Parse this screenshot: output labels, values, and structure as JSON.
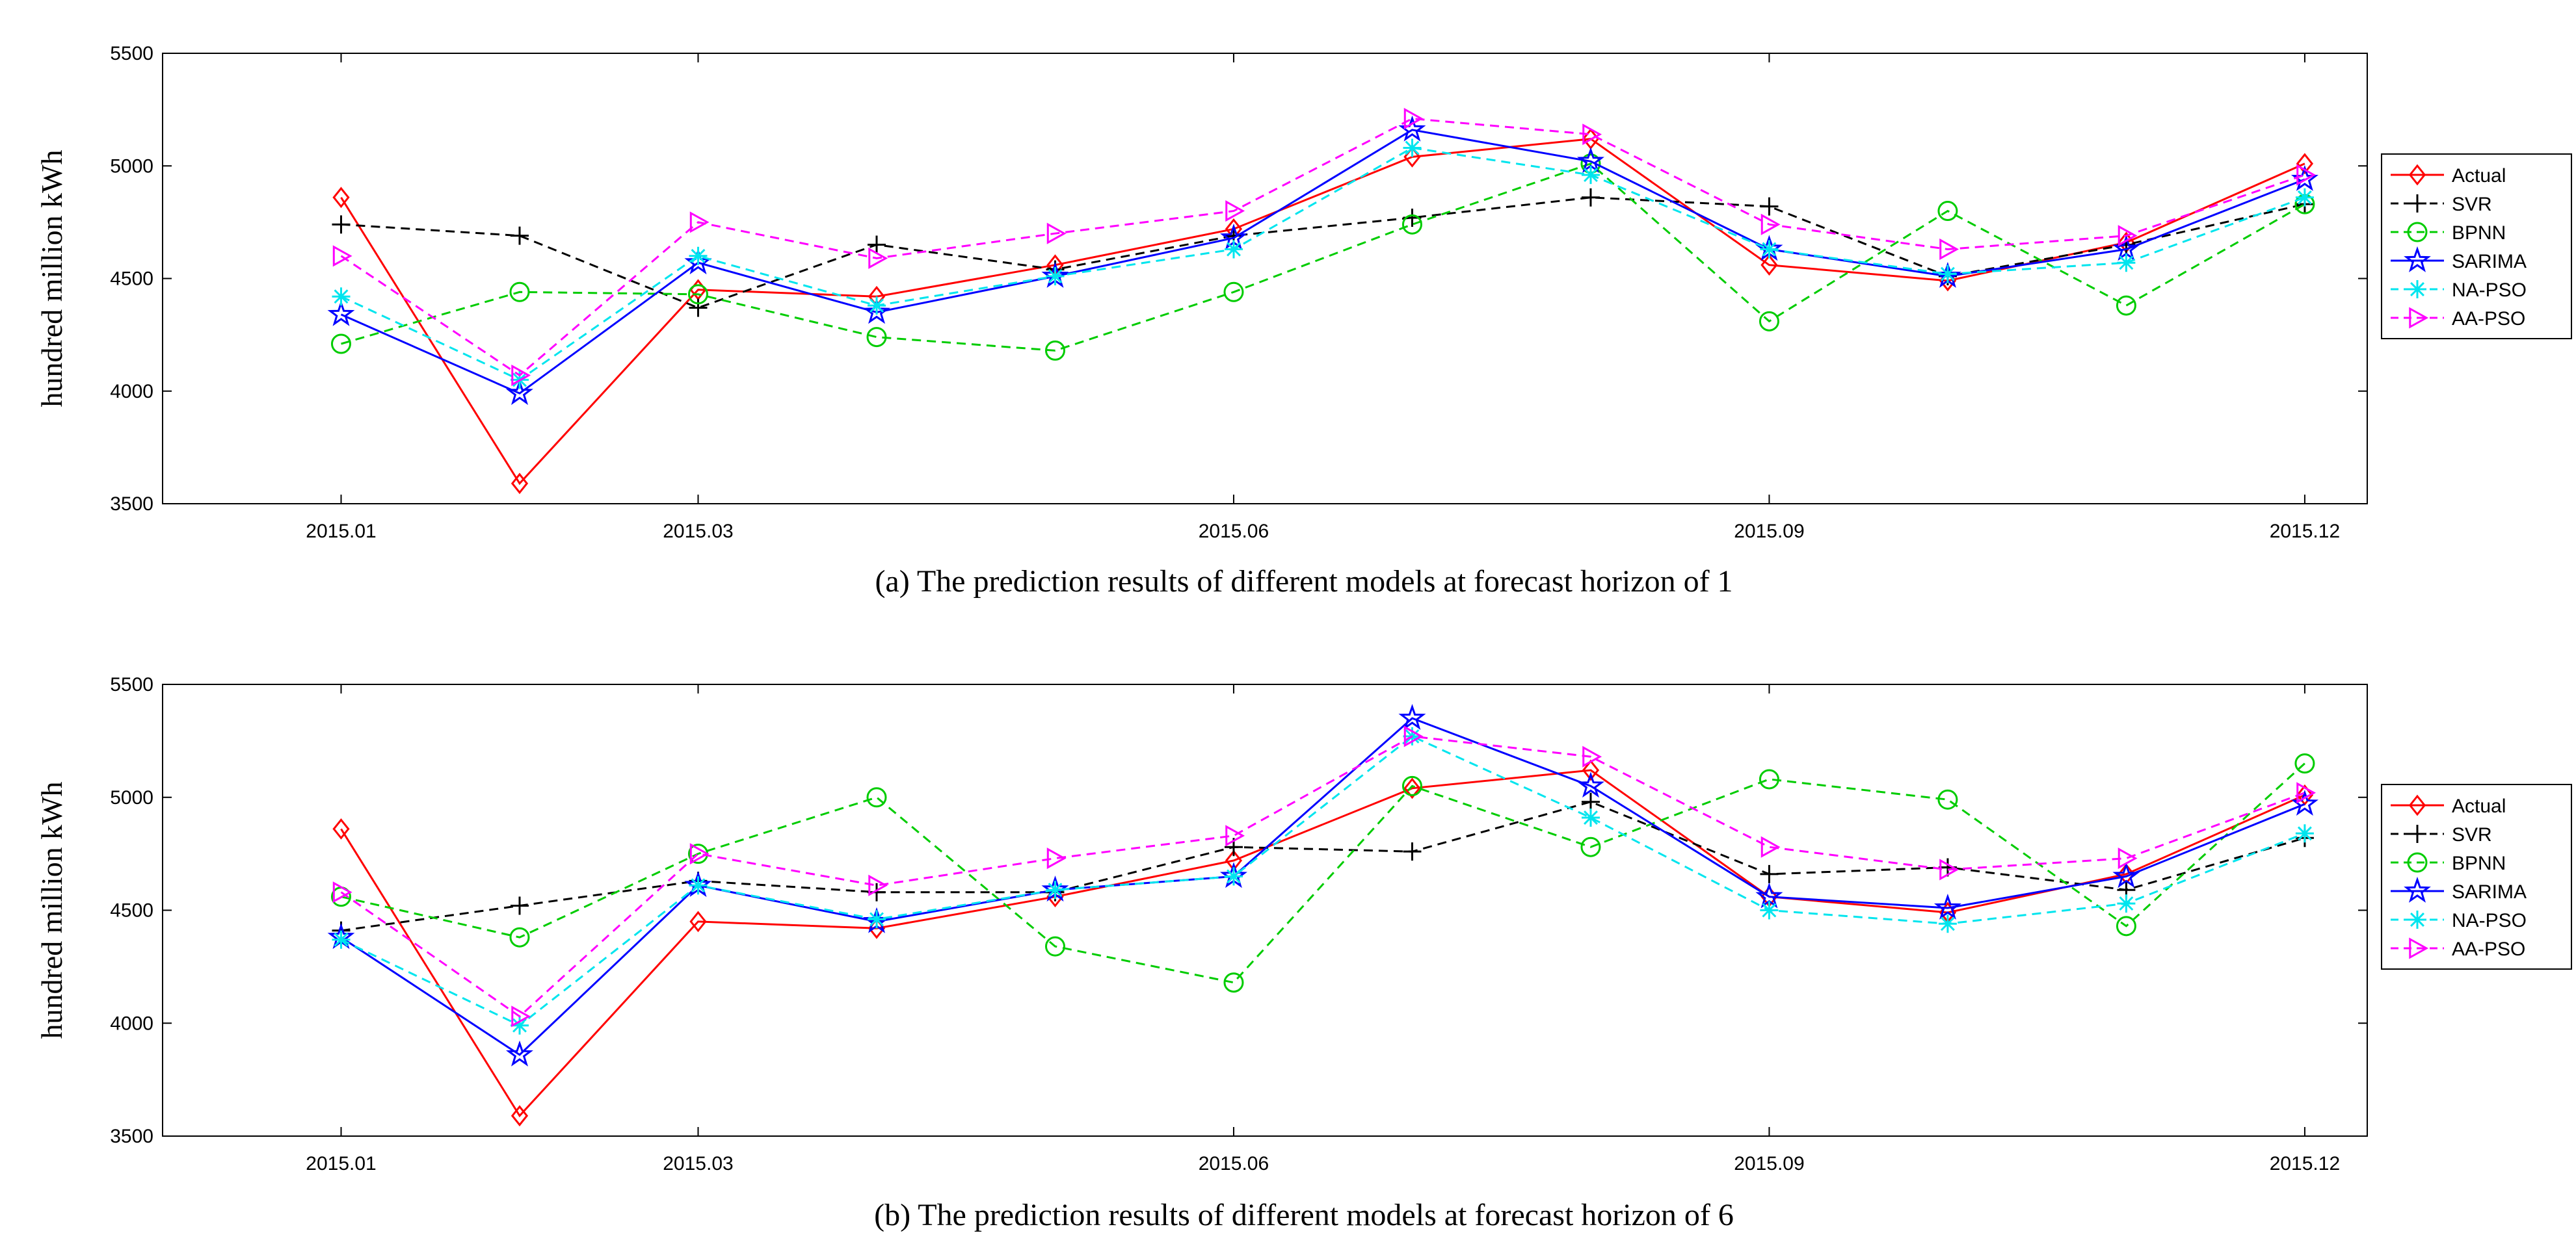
{
  "chart_data": [
    {
      "type": "line",
      "caption": "(a) The prediction results of different models at forecast horizon of 1",
      "ylabel": "hundred million kWh",
      "ylim": [
        3500,
        5500
      ],
      "yticks": [
        "3500",
        "4000",
        "4500",
        "5000",
        "5500"
      ],
      "xlim": [
        0,
        12.35
      ],
      "xticks": [
        {
          "index": 1,
          "label": "2015.01"
        },
        {
          "index": 3,
          "label": "2015.03"
        },
        {
          "index": 6,
          "label": "2015.06"
        },
        {
          "index": 9,
          "label": "2015.09"
        },
        {
          "index": 12,
          "label": "2015.12"
        }
      ],
      "x": [
        1,
        2,
        3,
        4,
        5,
        6,
        7,
        8,
        9,
        10,
        11,
        12
      ],
      "legend_position": "right-center",
      "series": [
        {
          "name": "Actual",
          "color": "#ff0000",
          "dash": "solid",
          "marker": "diamond",
          "values": [
            4860,
            3590,
            4450,
            4420,
            4560,
            4720,
            5040,
            5120,
            4560,
            4490,
            4660,
            5010
          ]
        },
        {
          "name": "SVR",
          "color": "#000000",
          "dash": "dashed",
          "marker": "plus",
          "values": [
            4740,
            4690,
            4370,
            4650,
            4540,
            4690,
            4770,
            4860,
            4820,
            4510,
            4650,
            4830
          ]
        },
        {
          "name": "BPNN",
          "color": "#00cc00",
          "dash": "dashed",
          "marker": "circle",
          "values": [
            4210,
            4440,
            4430,
            4240,
            4180,
            4440,
            4740,
            5010,
            4310,
            4800,
            4380,
            4830
          ]
        },
        {
          "name": "SARIMA",
          "color": "#0000ff",
          "dash": "solid",
          "marker": "star",
          "values": [
            4340,
            3990,
            4570,
            4350,
            4510,
            4680,
            5160,
            5020,
            4630,
            4510,
            4630,
            4940
          ]
        },
        {
          "name": "NA-PSO",
          "color": "#00e5ee",
          "dash": "dashed",
          "marker": "asterisk",
          "values": [
            4420,
            4050,
            4600,
            4380,
            4510,
            4630,
            5080,
            4960,
            4630,
            4520,
            4570,
            4860
          ]
        },
        {
          "name": "AA-PSO",
          "color": "#ff00ff",
          "dash": "dashed",
          "marker": "triangle-right",
          "values": [
            4600,
            4070,
            4750,
            4590,
            4700,
            4800,
            5210,
            5140,
            4740,
            4630,
            4690,
            4960
          ]
        }
      ]
    },
    {
      "type": "line",
      "caption": "(b) The prediction results of different models at forecast horizon of 6",
      "ylabel": "hundred million kWh",
      "ylim": [
        3500,
        5500
      ],
      "yticks": [
        "3500",
        "4000",
        "4500",
        "5000",
        "5500"
      ],
      "xlim": [
        0,
        12.35
      ],
      "xticks": [
        {
          "index": 1,
          "label": "2015.01"
        },
        {
          "index": 3,
          "label": "2015.03"
        },
        {
          "index": 6,
          "label": "2015.06"
        },
        {
          "index": 9,
          "label": "2015.09"
        },
        {
          "index": 12,
          "label": "2015.12"
        }
      ],
      "x": [
        1,
        2,
        3,
        4,
        5,
        6,
        7,
        8,
        9,
        10,
        11,
        12
      ],
      "legend_position": "right-center",
      "series": [
        {
          "name": "Actual",
          "color": "#ff0000",
          "dash": "solid",
          "marker": "diamond",
          "values": [
            4860,
            3590,
            4450,
            4420,
            4560,
            4720,
            5040,
            5120,
            4560,
            4490,
            4660,
            5010
          ]
        },
        {
          "name": "SVR",
          "color": "#000000",
          "dash": "dashed",
          "marker": "plus",
          "values": [
            4410,
            4520,
            4630,
            4580,
            4580,
            4780,
            4760,
            4980,
            4660,
            4690,
            4590,
            4820
          ]
        },
        {
          "name": "BPNN",
          "color": "#00cc00",
          "dash": "dashed",
          "marker": "circle",
          "values": [
            4560,
            4380,
            4750,
            5000,
            4340,
            4180,
            5050,
            4780,
            5080,
            4990,
            4430,
            5150
          ]
        },
        {
          "name": "SARIMA",
          "color": "#0000ff",
          "dash": "solid",
          "marker": "star",
          "values": [
            4380,
            3860,
            4610,
            4450,
            4590,
            4650,
            5350,
            5050,
            4560,
            4510,
            4650,
            4970
          ]
        },
        {
          "name": "NA-PSO",
          "color": "#00e5ee",
          "dash": "dashed",
          "marker": "asterisk",
          "values": [
            4370,
            3990,
            4610,
            4460,
            4590,
            4650,
            5270,
            4910,
            4500,
            4440,
            4530,
            4840
          ]
        },
        {
          "name": "AA-PSO",
          "color": "#ff00ff",
          "dash": "dashed",
          "marker": "triangle-right",
          "values": [
            4580,
            4030,
            4750,
            4610,
            4730,
            4830,
            5270,
            5180,
            4780,
            4680,
            4730,
            5020
          ]
        }
      ]
    }
  ]
}
